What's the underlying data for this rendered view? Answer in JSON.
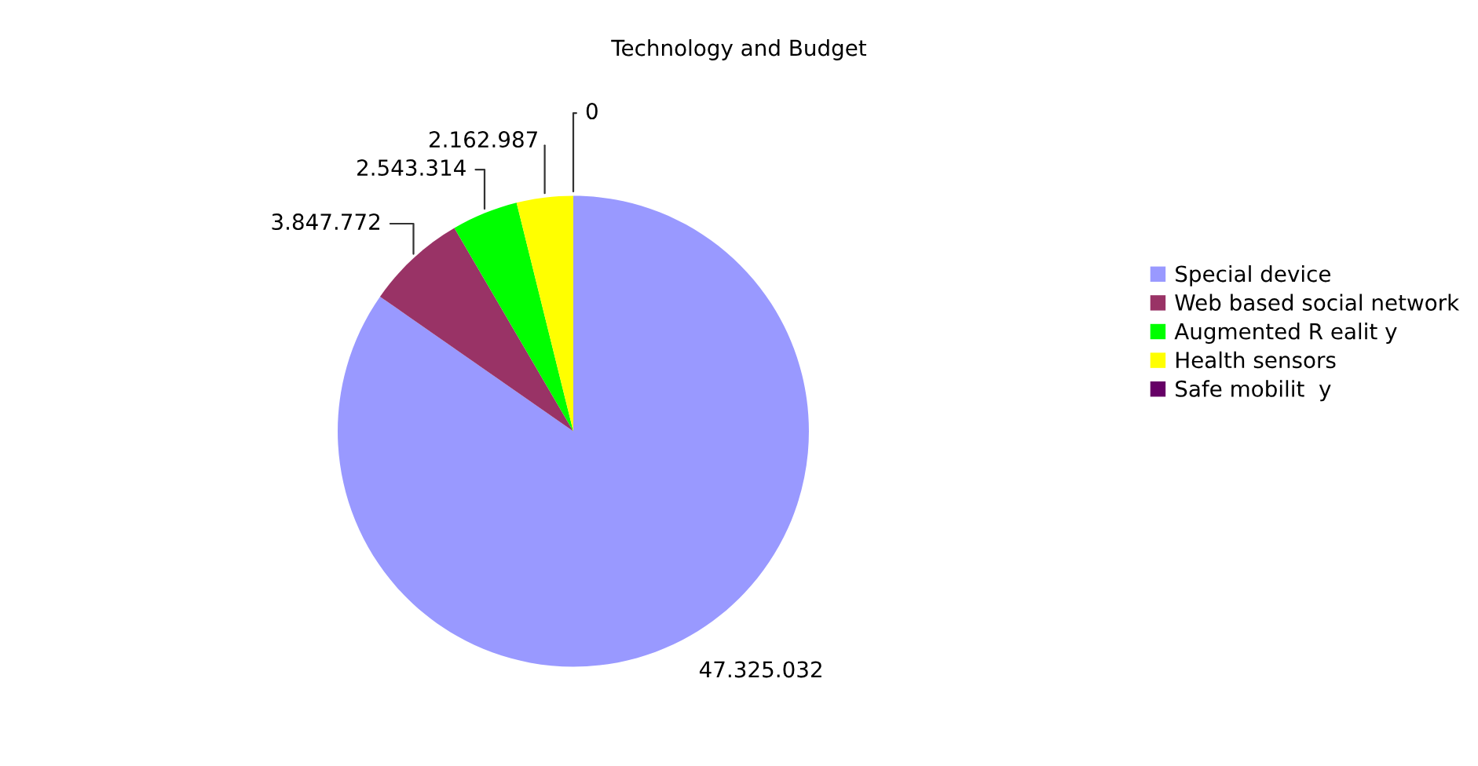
{
  "chart_data": {
    "type": "pie",
    "title": "Technology and Budget",
    "categories": [
      "Special device",
      "Web based social network",
      "Augmented R ealit y",
      "Health sensors",
      "Safe mobilit  y"
    ],
    "values": [
      47325032,
      3847772,
      2543314,
      2162987,
      0
    ],
    "value_labels": [
      "47.325.032",
      "3.847.772",
      "2.543.314",
      "2.162.987",
      "0"
    ],
    "colors": [
      "#9999ff",
      "#993366",
      "#00ff00",
      "#ffff00",
      "#660066"
    ],
    "legend": "right"
  }
}
